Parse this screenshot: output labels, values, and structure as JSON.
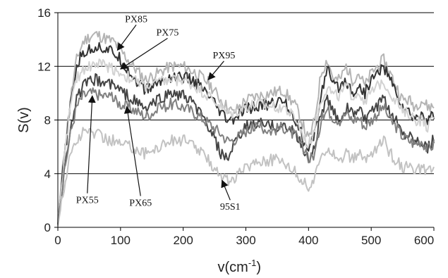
{
  "chart_data": {
    "type": "line",
    "xlabel": "v(cm",
    "xlabel_sup": "-1",
    "xlabel_close": ")",
    "ylabel": "S(v)",
    "xlim": [
      0,
      600
    ],
    "ylim": [
      0,
      16
    ],
    "xticks": [
      "0",
      "100",
      "200",
      "300",
      "400",
      "500",
      "600"
    ],
    "yticks": [
      "0",
      "4",
      "8",
      "12",
      "16"
    ],
    "grid": "horizontal",
    "legend": "none",
    "series": [
      {
        "name": "PX95",
        "color": "#b4b4b4",
        "x": [
          0,
          10,
          20,
          30,
          40,
          50,
          60,
          70,
          80,
          90,
          100,
          120,
          140,
          160,
          180,
          200,
          220,
          240,
          260,
          270,
          280,
          300,
          320,
          340,
          360,
          380,
          400,
          410,
          420,
          430,
          440,
          450,
          460,
          470,
          480,
          490,
          500,
          510,
          520,
          530,
          540,
          550,
          560,
          570,
          580,
          590,
          600
        ],
        "values": [
          0.5,
          5.5,
          9.5,
          12.5,
          13.8,
          14.2,
          14.4,
          14.2,
          14.0,
          13.8,
          13.2,
          12.0,
          11.0,
          11.5,
          12.0,
          12.0,
          11.5,
          10.8,
          9.5,
          9.0,
          8.5,
          9.5,
          9.8,
          10.0,
          10.2,
          9.0,
          6.5,
          8.0,
          11.5,
          12.5,
          11.0,
          11.0,
          12.0,
          11.0,
          11.5,
          10.5,
          11.5,
          12.0,
          12.5,
          11.5,
          10.5,
          9.5,
          9.5,
          9.0,
          9.5,
          9.0,
          9.0
        ]
      },
      {
        "name": "PX85",
        "color": "#333333",
        "x": [
          0,
          10,
          20,
          30,
          40,
          50,
          60,
          70,
          80,
          90,
          100,
          120,
          140,
          160,
          180,
          200,
          220,
          240,
          260,
          270,
          280,
          300,
          320,
          340,
          360,
          380,
          400,
          410,
          420,
          430,
          440,
          450,
          460,
          470,
          480,
          490,
          500,
          510,
          520,
          530,
          540,
          550,
          560,
          570,
          580,
          590,
          600
        ],
        "values": [
          0.3,
          5.0,
          9.0,
          12.0,
          13.0,
          13.2,
          13.5,
          13.4,
          13.2,
          13.0,
          12.5,
          11.2,
          10.2,
          10.8,
          11.2,
          11.2,
          10.8,
          9.8,
          8.5,
          8.0,
          8.0,
          8.8,
          9.0,
          9.2,
          9.5,
          8.0,
          5.5,
          7.0,
          10.0,
          11.8,
          10.5,
          10.5,
          11.0,
          10.0,
          10.5,
          10.0,
          11.0,
          11.5,
          12.0,
          11.0,
          10.0,
          9.0,
          8.5,
          8.0,
          8.5,
          8.0,
          8.5
        ]
      },
      {
        "name": "PX75",
        "color": "#d2d2d2",
        "x": [
          0,
          10,
          20,
          30,
          40,
          50,
          60,
          70,
          80,
          90,
          100,
          120,
          140,
          160,
          180,
          200,
          220,
          240,
          260,
          270,
          280,
          300,
          320,
          340,
          360,
          380,
          400,
          410,
          420,
          430,
          440,
          450,
          460,
          470,
          480,
          490,
          500,
          510,
          520,
          530,
          540,
          550,
          560,
          570,
          580,
          590,
          600
        ],
        "values": [
          0.3,
          5.0,
          9.0,
          11.0,
          11.8,
          12.0,
          12.2,
          12.2,
          12.0,
          11.8,
          11.5,
          11.0,
          10.5,
          10.8,
          11.0,
          11.0,
          10.5,
          9.8,
          9.0,
          8.5,
          8.5,
          9.0,
          9.2,
          9.0,
          9.0,
          8.0,
          6.0,
          7.5,
          9.5,
          10.5,
          9.8,
          9.8,
          10.5,
          9.8,
          10.0,
          9.5,
          10.0,
          10.5,
          11.0,
          10.0,
          9.5,
          8.5,
          8.5,
          8.0,
          8.0,
          7.5,
          8.0
        ]
      },
      {
        "name": "PX55",
        "color": "#444444",
        "x": [
          0,
          10,
          20,
          30,
          40,
          50,
          60,
          70,
          80,
          90,
          100,
          120,
          140,
          160,
          180,
          200,
          220,
          240,
          260,
          270,
          280,
          300,
          320,
          340,
          360,
          380,
          400,
          410,
          420,
          430,
          440,
          450,
          460,
          470,
          480,
          490,
          500,
          510,
          520,
          530,
          540,
          550,
          560,
          570,
          580,
          590,
          600
        ],
        "values": [
          0.2,
          4.0,
          7.5,
          9.5,
          10.5,
          10.8,
          11.0,
          10.8,
          10.8,
          10.5,
          10.2,
          9.5,
          8.8,
          9.5,
          10.0,
          9.8,
          9.0,
          7.5,
          5.5,
          5.0,
          6.0,
          7.5,
          7.8,
          7.5,
          7.5,
          7.0,
          5.0,
          6.0,
          8.5,
          9.5,
          8.5,
          8.0,
          9.0,
          8.5,
          8.8,
          8.0,
          8.5,
          9.0,
          9.5,
          8.5,
          8.0,
          7.0,
          7.0,
          6.5,
          6.5,
          6.0,
          6.5
        ]
      },
      {
        "name": "PX65",
        "color": "#808080",
        "x": [
          0,
          10,
          20,
          30,
          40,
          50,
          60,
          70,
          80,
          90,
          100,
          120,
          140,
          160,
          180,
          200,
          220,
          240,
          260,
          270,
          280,
          300,
          320,
          340,
          360,
          380,
          400,
          410,
          420,
          430,
          440,
          450,
          460,
          470,
          480,
          490,
          500,
          510,
          520,
          530,
          540,
          550,
          560,
          570,
          580,
          590,
          600
        ],
        "values": [
          0.2,
          4.0,
          7.0,
          9.0,
          9.8,
          10.0,
          10.0,
          9.8,
          9.8,
          9.5,
          9.2,
          8.8,
          8.3,
          8.8,
          9.2,
          9.0,
          8.5,
          7.8,
          7.0,
          6.5,
          6.5,
          7.2,
          7.5,
          7.2,
          7.5,
          6.8,
          5.0,
          5.5,
          8.0,
          8.8,
          8.2,
          8.0,
          8.5,
          8.0,
          8.2,
          7.5,
          8.0,
          8.5,
          9.0,
          8.0,
          7.5,
          6.8,
          6.5,
          6.2,
          6.5,
          5.8,
          6.2
        ]
      },
      {
        "name": "95S1",
        "color": "#c2c2c2",
        "x": [
          0,
          10,
          20,
          30,
          40,
          50,
          60,
          70,
          80,
          90,
          100,
          120,
          140,
          160,
          180,
          200,
          220,
          240,
          260,
          270,
          280,
          300,
          320,
          340,
          360,
          380,
          400,
          410,
          420,
          430,
          440,
          450,
          460,
          470,
          480,
          490,
          500,
          510,
          520,
          530,
          540,
          550,
          560,
          570,
          580,
          590,
          600
        ],
        "values": [
          0.1,
          3.0,
          5.5,
          6.5,
          7.0,
          7.2,
          7.0,
          6.8,
          6.5,
          6.5,
          6.2,
          6.0,
          5.5,
          6.0,
          6.5,
          6.5,
          6.0,
          5.0,
          4.0,
          3.5,
          3.5,
          4.5,
          5.0,
          5.0,
          5.0,
          4.0,
          3.0,
          3.5,
          5.5,
          6.0,
          5.5,
          5.0,
          5.5,
          5.0,
          5.5,
          5.0,
          5.5,
          6.0,
          6.5,
          5.5,
          5.0,
          4.5,
          4.5,
          4.0,
          4.5,
          4.0,
          4.5
        ]
      }
    ],
    "annotations": [
      {
        "text": "PX85",
        "series": "PX85",
        "x": 95,
        "y": 13.2,
        "lx": 125,
        "ly": 15.3
      },
      {
        "text": "PX75",
        "series": "PX75",
        "x": 100,
        "y": 11.8,
        "lx": 175,
        "ly": 14.3
      },
      {
        "text": "PX95",
        "series": "PX95",
        "x": 240,
        "y": 11.0,
        "lx": 265,
        "ly": 12.6
      },
      {
        "text": "PX55",
        "series": "PX55",
        "x": 55,
        "y": 9.8,
        "lx": 47,
        "ly": 1.8
      },
      {
        "text": "PX65",
        "series": "PX65",
        "x": 110,
        "y": 9.0,
        "lx": 132,
        "ly": 1.6
      },
      {
        "text": "95S1",
        "series": "95S1",
        "x": 262,
        "y": 3.5,
        "lx": 275,
        "ly": 1.3
      }
    ]
  }
}
